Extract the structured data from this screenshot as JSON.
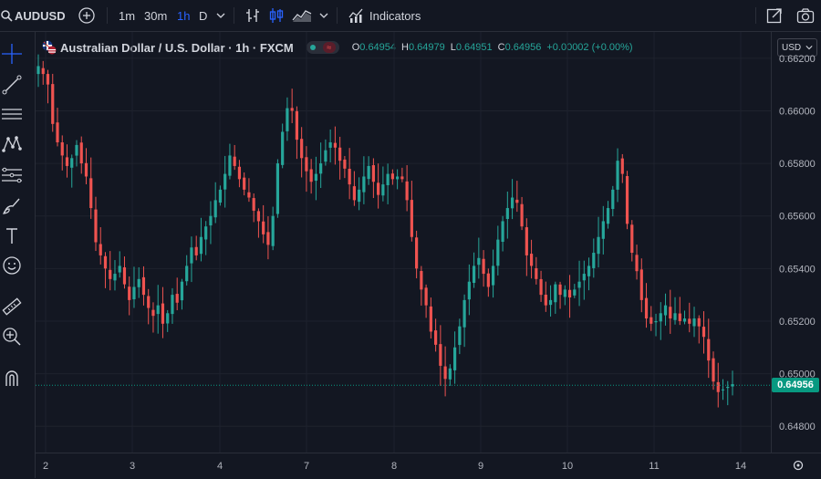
{
  "toolbar": {
    "symbol": "AUDUSD",
    "timeframes": [
      "1m",
      "30m",
      "1h",
      "D"
    ],
    "active_timeframe": "1h",
    "indicators_label": "Indicators"
  },
  "legend": {
    "title": "Australian Dollar / U.S. Dollar · 1h · FXCM",
    "open_label": "O",
    "open": "0.64954",
    "high_label": "H",
    "high": "0.64979",
    "low_label": "L",
    "low": "0.64951",
    "close_label": "C",
    "close": "0.64956",
    "change": "+0.00002 (+0.00%)"
  },
  "currency_select": "USD",
  "colors": {
    "up": "#26a69a",
    "down": "#ef5350",
    "background": "#131722",
    "grid": "#1e222d",
    "accent": "#2962ff"
  },
  "chart_data": {
    "type": "candlestick",
    "y_ticks": [
      "0.66200",
      "0.66000",
      "0.65800",
      "0.65600",
      "0.65400",
      "0.65200",
      "0.65000",
      "0.64800"
    ],
    "x_ticks": [
      "2",
      "3",
      "4",
      "7",
      "8",
      "9",
      "10",
      "11",
      "14"
    ],
    "ylim": [
      0.647,
      0.663
    ],
    "last_price": "0.64956",
    "close_path": [
      0.6617,
      0.6614,
      0.661,
      0.6595,
      0.6588,
      0.6583,
      0.6579,
      0.6582,
      0.6587,
      0.658,
      0.6575,
      0.6563,
      0.655,
      0.6545,
      0.654,
      0.6536,
      0.6538,
      0.6541,
      0.6534,
      0.6528,
      0.6533,
      0.6536,
      0.653,
      0.6525,
      0.6522,
      0.6526,
      0.6519,
      0.6523,
      0.653,
      0.6527,
      0.6535,
      0.6541,
      0.6548,
      0.6545,
      0.6552,
      0.6556,
      0.656,
      0.6566,
      0.657,
      0.6576,
      0.6583,
      0.6579,
      0.6574,
      0.657,
      0.6567,
      0.6562,
      0.6558,
      0.6553,
      0.6549,
      0.656,
      0.658,
      0.6592,
      0.6601,
      0.66,
      0.6589,
      0.6582,
      0.6577,
      0.6573,
      0.6576,
      0.658,
      0.6585,
      0.6588,
      0.6586,
      0.6581,
      0.6578,
      0.6572,
      0.6566,
      0.657,
      0.6575,
      0.6579,
      0.6573,
      0.6568,
      0.6572,
      0.6576,
      0.6574,
      0.6575,
      0.6574,
      0.6566,
      0.6552,
      0.654,
      0.6532,
      0.6526,
      0.6516,
      0.6511,
      0.6503,
      0.6498,
      0.6502,
      0.651,
      0.6518,
      0.6528,
      0.6535,
      0.6541,
      0.6544,
      0.6538,
      0.6533,
      0.6541,
      0.6551,
      0.6558,
      0.6563,
      0.6567,
      0.6565,
      0.6556,
      0.6545,
      0.6541,
      0.6536,
      0.653,
      0.6526,
      0.6528,
      0.6534,
      0.653,
      0.6532,
      0.6529,
      0.6532,
      0.6535,
      0.6538,
      0.6541,
      0.6546,
      0.6552,
      0.6558,
      0.6563,
      0.657,
      0.6581,
      0.6576,
      0.6557,
      0.6546,
      0.6539,
      0.6528,
      0.6521,
      0.6519,
      0.652,
      0.6523,
      0.6526,
      0.6521,
      0.6523,
      0.652,
      0.6521,
      0.6519,
      0.6521,
      0.6518,
      0.6514,
      0.6505,
      0.6497,
      0.6493,
      0.6494,
      0.6495,
      0.6496
    ]
  }
}
